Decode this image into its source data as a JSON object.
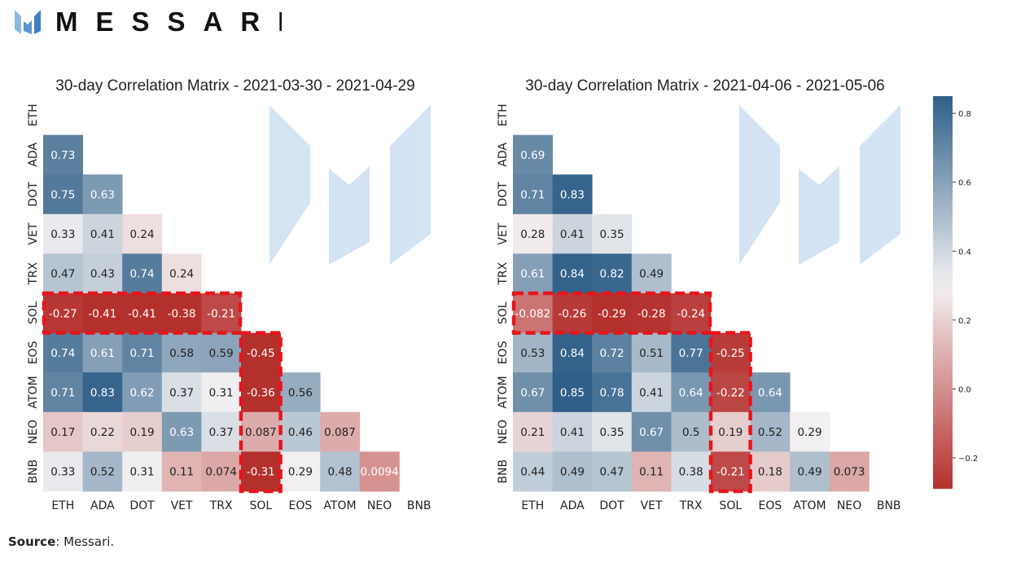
{
  "brand": {
    "name": "MESSARI"
  },
  "source": {
    "label": "Source",
    "text": ": Messari."
  },
  "colors": {
    "neg": "#b4302d",
    "mid": "#f3f2f3",
    "pos": "#2f5f88",
    "highlight": "#e8141b",
    "watermark": "#c2d8ee"
  },
  "colorbar": {
    "vmin": -0.29,
    "vmax": 0.85,
    "ticks": [
      0.8,
      0.6,
      0.4,
      0.2,
      0.0,
      -0.2
    ],
    "tick_labels": [
      "0.8",
      "0.6",
      "0.4",
      "0.2",
      "0.0",
      "−0.2"
    ]
  },
  "chart_data": [
    {
      "type": "heatmap",
      "title": "30-day Correlation Matrix - 2021-03-30 - 2021-04-29",
      "labels": [
        "ETH",
        "ADA",
        "DOT",
        "VET",
        "TRX",
        "SOL",
        "EOS",
        "ATOM",
        "NEO",
        "BNB"
      ],
      "lower_triangle": [
        [],
        [
          "0.73"
        ],
        [
          "0.75",
          "0.63"
        ],
        [
          "0.33",
          "0.41",
          "0.24"
        ],
        [
          "0.47",
          "0.43",
          "0.74",
          "0.24"
        ],
        [
          "-0.27",
          "-0.41",
          "-0.41",
          "-0.38",
          "-0.21"
        ],
        [
          "0.74",
          "0.61",
          "0.71",
          "0.58",
          "0.59",
          "-0.45"
        ],
        [
          "0.71",
          "0.83",
          "0.62",
          "0.37",
          "0.31",
          "-0.36",
          "0.56"
        ],
        [
          "0.17",
          "0.22",
          "0.19",
          "0.63",
          "0.37",
          "0.087",
          "0.46",
          "0.087"
        ],
        [
          "0.33",
          "0.52",
          "0.31",
          "0.11",
          "0.074",
          "-0.31",
          "0.29",
          "0.48",
          "0.0094"
        ]
      ],
      "highlighted": "SOL"
    },
    {
      "type": "heatmap",
      "title": "30-day Correlation Matrix - 2021-04-06 - 2021-05-06",
      "labels": [
        "ETH",
        "ADA",
        "DOT",
        "VET",
        "TRX",
        "SOL",
        "EOS",
        "ATOM",
        "NEO",
        "BNB"
      ],
      "lower_triangle": [
        [],
        [
          "0.69"
        ],
        [
          "0.71",
          "0.83"
        ],
        [
          "0.28",
          "0.41",
          "0.35"
        ],
        [
          "0.61",
          "0.84",
          "0.82",
          "0.49"
        ],
        [
          "-0.082",
          "-0.26",
          "-0.29",
          "-0.28",
          "-0.24"
        ],
        [
          "0.53",
          "0.84",
          "0.72",
          "0.51",
          "0.77",
          "-0.25"
        ],
        [
          "0.67",
          "0.85",
          "0.78",
          "0.41",
          "0.64",
          "-0.22",
          "0.64"
        ],
        [
          "0.21",
          "0.41",
          "0.35",
          "0.67",
          "0.5",
          "0.19",
          "0.52",
          "0.29"
        ],
        [
          "0.44",
          "0.49",
          "0.47",
          "0.11",
          "0.38",
          "-0.21",
          "0.18",
          "0.49",
          "0.073"
        ]
      ],
      "highlighted": "SOL"
    }
  ]
}
